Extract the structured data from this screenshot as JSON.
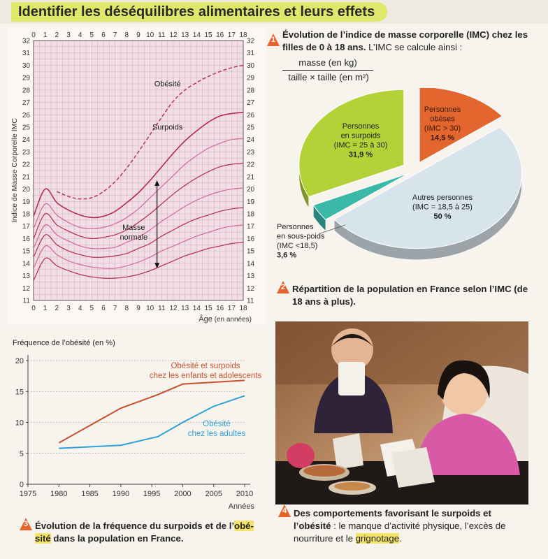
{
  "page_title": "Identifier les déséquilibres alimentaires et leurs effets",
  "doc1": {
    "number": "1",
    "caption_bold": "Évolution de l’indice de masse corporelle (IMC) chez les filles de 0 à 18 ans.",
    "caption_rest": " L’IMC se calcule ainsi :",
    "formula_num": "masse (en kg)",
    "formula_den": "taille × taille (en m²)"
  },
  "imc_chart": {
    "ylabel": "Indice de Masse Corporelle IMC",
    "xlabel": "Âge",
    "xlabel_unit": "(en années)",
    "x_ticks": [
      "0",
      "1",
      "2",
      "3",
      "4",
      "5",
      "6",
      "7",
      "8",
      "9",
      "10",
      "11",
      "12",
      "13",
      "14",
      "15",
      "16",
      "17",
      "18"
    ],
    "y_ticks": [
      "11",
      "12",
      "13",
      "14",
      "15",
      "16",
      "17",
      "18",
      "19",
      "20",
      "21",
      "22",
      "23",
      "24",
      "25",
      "26",
      "27",
      "28",
      "29",
      "30",
      "31",
      "32"
    ],
    "label_obesite": "Obésité",
    "label_surpoids": "Surpoids",
    "label_masse": "Masse",
    "label_normale": "normale"
  },
  "chart_data": [
    {
      "type": "line",
      "ylabel": "Indice de Masse Corporelle IMC",
      "xlabel": "Âge (en années)",
      "x": [
        0,
        1,
        2,
        3,
        4,
        5,
        6,
        7,
        8,
        9,
        10,
        11,
        12,
        13,
        14,
        15,
        16,
        17,
        18
      ],
      "xlim": [
        0,
        18
      ],
      "ylim": [
        11,
        32
      ],
      "grid": true,
      "series": [
        {
          "name": "Obésité",
          "style": "dashed",
          "color": "#b52a52",
          "x": [
            2,
            3,
            4,
            5,
            6,
            7,
            8,
            9,
            10,
            11,
            12,
            13,
            14,
            15,
            16,
            17,
            18
          ],
          "values": [
            19.8,
            19.4,
            19.2,
            19.3,
            19.8,
            20.6,
            21.7,
            23.0,
            24.4,
            25.8,
            27.1,
            28.0,
            28.6,
            29.1,
            29.5,
            29.8,
            30.0
          ]
        },
        {
          "name": "Surpoids",
          "values": [
            17.8,
            20.0,
            18.9,
            18.3,
            17.9,
            17.7,
            17.8,
            18.2,
            18.9,
            19.7,
            20.7,
            21.8,
            22.9,
            23.9,
            24.7,
            25.4,
            25.9,
            26.1,
            26.2
          ]
        },
        {
          "values": [
            16.8,
            18.8,
            17.9,
            17.3,
            16.9,
            16.8,
            16.9,
            17.2,
            17.7,
            18.4,
            19.3,
            20.2,
            21.1,
            22.0,
            22.7,
            23.3,
            23.7,
            24.0,
            24.1
          ]
        },
        {
          "values": [
            16.0,
            18.0,
            17.1,
            16.6,
            16.2,
            16.0,
            16.1,
            16.3,
            16.7,
            17.3,
            18.0,
            18.8,
            19.6,
            20.3,
            20.9,
            21.4,
            21.8,
            22.0,
            22.1
          ]
        },
        {
          "values": [
            15.2,
            17.1,
            16.3,
            15.8,
            15.4,
            15.2,
            15.2,
            15.3,
            15.7,
            16.1,
            16.7,
            17.4,
            18.0,
            18.6,
            19.1,
            19.5,
            19.8,
            20.0,
            20.1
          ]
        },
        {
          "values": [
            14.5,
            16.3,
            15.5,
            15.0,
            14.7,
            14.5,
            14.5,
            14.6,
            14.8,
            15.2,
            15.6,
            16.2,
            16.7,
            17.2,
            17.6,
            17.9,
            18.2,
            18.4,
            18.5
          ]
        },
        {
          "values": [
            13.6,
            15.4,
            14.7,
            14.2,
            13.9,
            13.7,
            13.6,
            13.6,
            13.8,
            14.1,
            14.5,
            15.0,
            15.4,
            15.8,
            16.2,
            16.5,
            16.8,
            17.0,
            17.1
          ]
        },
        {
          "values": [
            12.6,
            14.4,
            13.8,
            13.4,
            13.1,
            12.9,
            12.8,
            12.8,
            12.9,
            13.1,
            13.4,
            13.8,
            14.2,
            14.6,
            14.9,
            15.2,
            15.4,
            15.6,
            15.7
          ]
        }
      ],
      "annotations": [
        {
          "text": "Obésité",
          "x": 11.5,
          "y": 28.3
        },
        {
          "text": "Surpoids",
          "x": 11.5,
          "y": 24.8
        },
        {
          "text": "Masse normale",
          "x": 8.6,
          "y": 16.7,
          "arrow_x": 10.6,
          "arrow_y": [
            13.7,
            20.6
          ]
        }
      ]
    },
    {
      "type": "pie",
      "categories": [
        "Personnes obèses (IMC > 30)",
        "Autres personnes (IMC = 18,5 à 25)",
        "Personnes en sous-poids (IMC <18,5)",
        "Personnes en surpoids (IMC = 25 à 30)"
      ],
      "values": [
        14.5,
        50,
        3.6,
        31.9
      ],
      "colors": [
        "#e2662e",
        "#d8e4ec",
        "#3ab8a8",
        "#b4d138"
      ]
    },
    {
      "type": "line",
      "ylabel": "Fréquence de l’obésité (en %)",
      "xlabel": "Années",
      "x": [
        1980,
        1990,
        1996,
        2000,
        2005,
        2010
      ],
      "xlim": [
        1975,
        2010
      ],
      "ylim": [
        0,
        20
      ],
      "x_ticks": [
        1975,
        1980,
        1985,
        1990,
        1995,
        2000,
        2005,
        2010
      ],
      "y_ticks": [
        0,
        5,
        10,
        15,
        20
      ],
      "series": [
        {
          "name": "Obésité et surpoids chez les enfants et adolescents",
          "color": "#c8502e",
          "values": [
            6.7,
            12.3,
            14.5,
            16.2,
            16.5,
            16.8
          ]
        },
        {
          "name": "Obésité chez les adultes",
          "color": "#2f9fd8",
          "values": [
            5.8,
            6.3,
            7.7,
            10.0,
            12.6,
            14.3
          ]
        }
      ]
    }
  ],
  "pie_labels": {
    "obese": [
      "Personnes",
      "obèses",
      "(IMC > 30)",
      "14,5 %"
    ],
    "autres": [
      "Autres personnes",
      "(IMC = 18,5 à 25)",
      "50 %"
    ],
    "sous": [
      "Personnes",
      "en sous-poids",
      "(IMC <18,5)",
      "3,6 %"
    ],
    "surpoids": [
      "Personnes",
      "en surpoids",
      "(IMC = 25 à 30)",
      "31,9 %"
    ]
  },
  "doc2": {
    "number": "2",
    "caption": "Répartition de la population en France selon l’IMC (de 18 ans à plus)."
  },
  "freq_chart": {
    "ylabel": "Fréquence de l’obésité",
    "ylabel_unit": "(en %)",
    "xlabel": "Années",
    "series1_label": [
      "Obésité et surpoids",
      "chez les enfants et adolescents"
    ],
    "series2_label": [
      "Obésité",
      "chez les adultes"
    ]
  },
  "doc3": {
    "number": "3",
    "caption_a": "Évolution de la fréquence du surpoids et de l’",
    "caption_hl1": "obé-",
    "caption_hl2": "sité",
    "caption_b": " dans la population en France."
  },
  "doc4": {
    "number": "4",
    "caption_bold": "Des comportements favorisant le surpoids et l’obésité",
    "caption_rest": " : le manque d’activité physique, l’excès de nourriture et le ",
    "caption_hl": "grignotage",
    "caption_end": "."
  },
  "colors": {
    "title_band": "#dfe86a",
    "badge": "#e8622c",
    "imc_bg": "#f3dde7",
    "grid": "#c9b0bc",
    "curves": "#b52a52",
    "highlight": "#f4e46a"
  }
}
